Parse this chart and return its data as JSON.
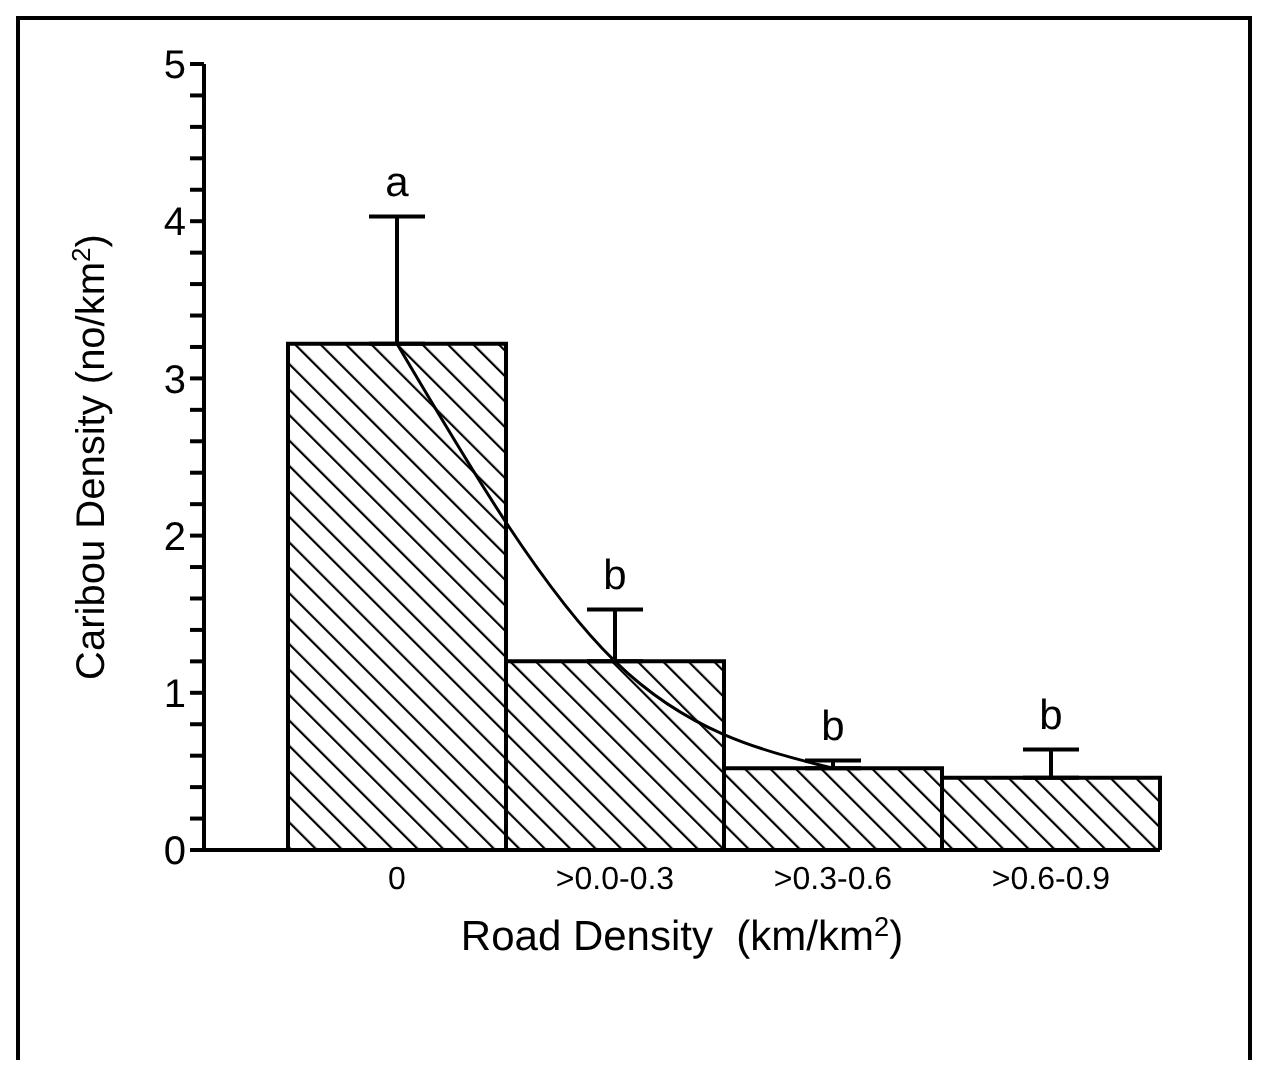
{
  "chart_data": {
    "type": "bar",
    "xlabel": "Road Density  (km/km$^{2}$)",
    "ylabel": "Caribou Density (no/km$^{2}$)",
    "categories": [
      "0",
      ">0.0-0.3",
      ">0.3-0.6",
      ">0.6-0.9"
    ],
    "series": [
      {
        "color": "#000000",
        "values": [
          3.22,
          1.2,
          0.52,
          0.46
        ],
        "errors": [
          [
            3.22,
            4.03
          ],
          [
            1.2,
            1.53
          ],
          [
            0.52,
            0.57
          ],
          [
            0.46,
            0.64
          ]
        ]
      },
      {
        "type": "line",
        "color": "#000000",
        "values": [
          3.22,
          1.2,
          0.52,
          null
        ]
      }
    ],
    "ylim": [
      0,
      5
    ],
    "yticks": [
      0,
      {
        "value": 0.2,
        "label": null
      },
      {
        "value": 0.4,
        "label": null
      },
      {
        "value": 0.6,
        "label": null
      },
      {
        "value": 0.8,
        "label": null
      },
      1,
      {
        "value": 1.2,
        "label": null
      },
      {
        "value": 1.4,
        "label": null
      },
      {
        "value": 1.6,
        "label": null
      },
      {
        "value": 1.8,
        "label": null
      },
      2,
      {
        "value": 2.2,
        "label": null
      },
      {
        "value": 2.4,
        "label": null
      },
      {
        "value": 2.6,
        "label": null
      },
      {
        "value": 2.8,
        "label": null
      },
      3,
      {
        "value": 3.2,
        "label": null
      },
      {
        "value": 3.4,
        "label": null
      },
      {
        "value": 3.6,
        "label": null
      },
      {
        "value": 3.8,
        "label": null
      },
      4,
      {
        "value": 4.2,
        "label": null
      },
      {
        "value": 4.4,
        "label": null
      },
      {
        "value": 4.6,
        "label": null
      },
      {
        "value": 4.8,
        "label": null
      },
      5
    ],
    "annotations": [
      {
        "text": "a",
        "x": "0",
        "y": 4.03
      },
      {
        "text": "b",
        "x": ">0.0-0.3",
        "y": 1.53
      },
      {
        "text": "b",
        "x": ">0.3-0.6",
        "y": 0.57
      },
      {
        "text": "b",
        "x": ">0.6-0.9",
        "y": 0.64
      }
    ],
    "marker": "none",
    "grid": false,
    "legend": false
  }
}
